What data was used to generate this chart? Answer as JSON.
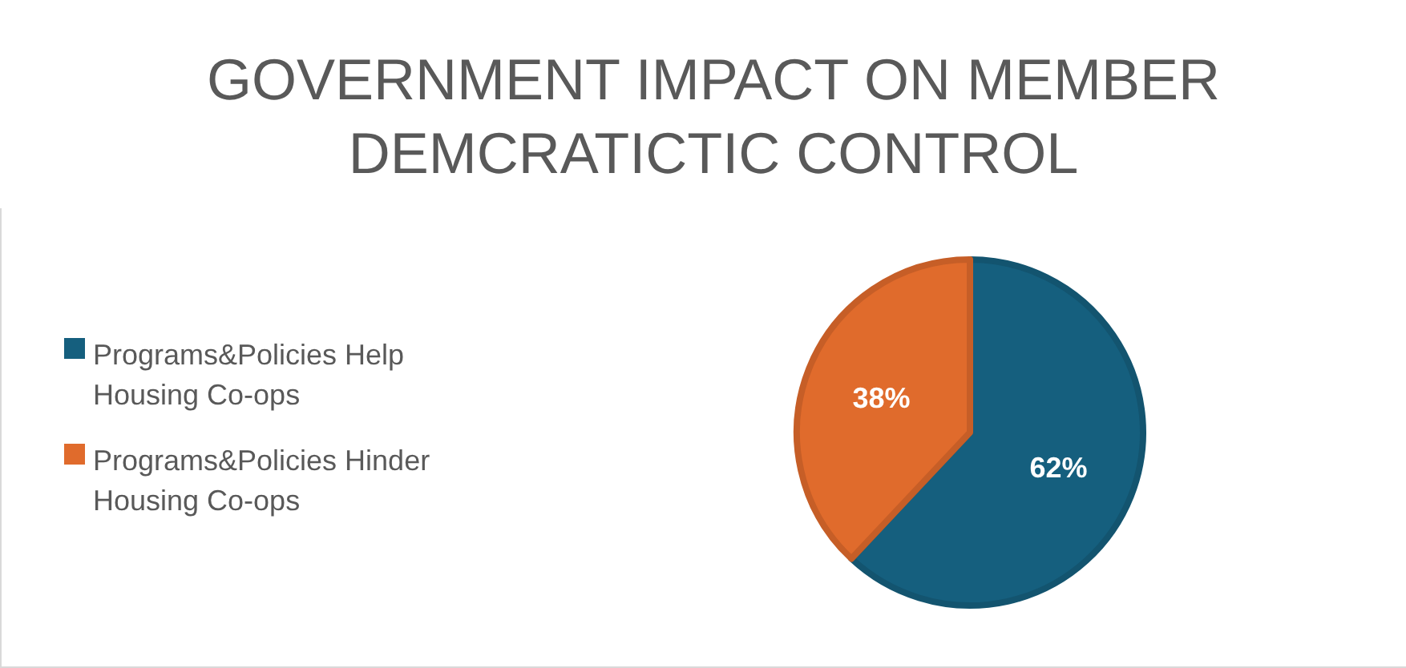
{
  "chart_data": {
    "type": "pie",
    "title": "GOVERNMENT IMPACT ON MEMBER DEMCRATICTIC CONTROL",
    "categories": [
      "Programs&Policies Help Housing Co-ops",
      "Programs&Policies Hinder Housing Co-ops"
    ],
    "values": [
      62,
      38
    ],
    "colors": [
      "#155f7e",
      "#e06b2c"
    ],
    "value_labels": [
      "62%",
      "38%"
    ],
    "legend": "left"
  }
}
